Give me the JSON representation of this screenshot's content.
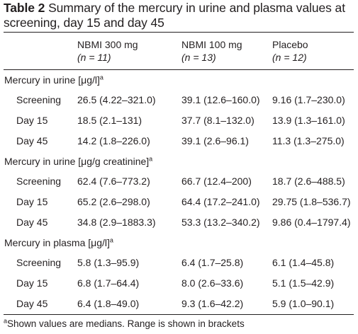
{
  "caption": {
    "label": "Table 2",
    "text": " Summary of the mercury in urine and plasma values at screening, day 15 and day 45"
  },
  "header": {
    "columns": [
      {
        "name": "NBMI 300 mg",
        "n": "(n = 11)"
      },
      {
        "name": "NBMI 100 mg",
        "n": "(n = 13)"
      },
      {
        "name": "Placebo",
        "n": "(n = 12)"
      }
    ]
  },
  "sections": [
    {
      "title": "Mercury in urine [μg/l]",
      "mark": "a",
      "rows": [
        {
          "label": "Screening",
          "values": [
            "26.5 (4.22–321.0)",
            "39.1 (12.6–160.0)",
            "9.16 (1.7–230.0)"
          ]
        },
        {
          "label": "Day 15",
          "values": [
            "18.5 (2.1–131)",
            "37.7 (8.1–132.0)",
            "13.9 (1.3–161.0)"
          ]
        },
        {
          "label": "Day 45",
          "values": [
            "14.2 (1.8–226.0)",
            "39.1 (2.6–96.1)",
            "11.3 (1.3–275.0)"
          ]
        }
      ]
    },
    {
      "title": "Mercury in urine [μg/g creatinine]",
      "mark": "a",
      "rows": [
        {
          "label": "Screening",
          "values": [
            "62.4 (7.6–773.2)",
            "66.7 (12.4–200)",
            "18.7 (2.6–488.5)"
          ]
        },
        {
          "label": "Day 15",
          "values": [
            "65.2 (2.6–298.0)",
            "64.4 (17.2–241.0)",
            "29.75 (1.8–536.7)"
          ]
        },
        {
          "label": "Day 45",
          "values": [
            "34.8 (2.9–1883.3)",
            "53.3 (13.2–340.2)",
            "9.86 (0.4–1797.4)"
          ]
        }
      ]
    },
    {
      "title": "Mercury in plasma [μg/l]",
      "mark": "a",
      "rows": [
        {
          "label": "Screening",
          "values": [
            "5.8 (1.3–95.9)",
            "6.4 (1.7–25.8)",
            "6.1 (1.4–45.8)"
          ]
        },
        {
          "label": "Day 15",
          "values": [
            "6.8 (1.7–64.4)",
            "8.0 (2.6–33.6)",
            "5.1 (1.5–42.9)"
          ]
        },
        {
          "label": "Day 45",
          "values": [
            "6.4 (1.8–49.0)",
            "9.3 (1.6–42.2)",
            "5.9 (1.0–90.1)"
          ]
        }
      ]
    }
  ],
  "footnote": {
    "mark": "a",
    "text": "Shown values are medians. Range is shown in brackets"
  }
}
